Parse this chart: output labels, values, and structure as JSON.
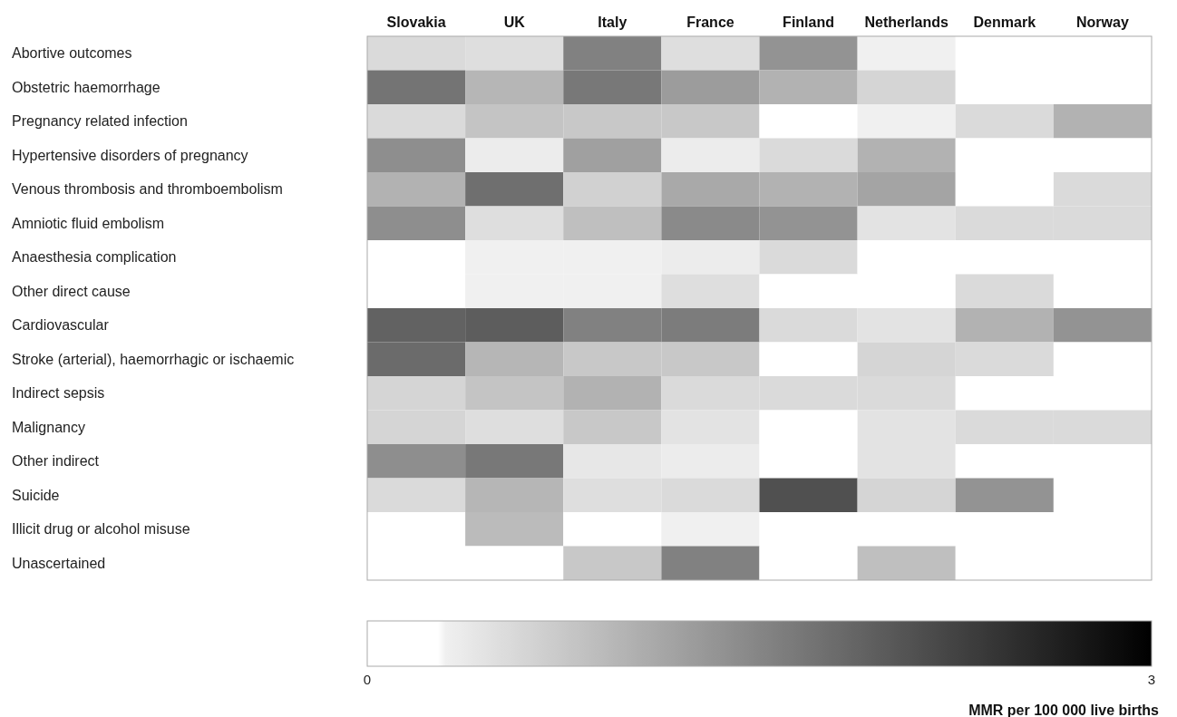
{
  "chart_data": {
    "type": "heatmap",
    "clabel": "MMR per 100 000 live births",
    "categories": [
      "Slovakia",
      "UK",
      "Italy",
      "France",
      "Finland",
      "Netherlands",
      "Denmark",
      "Norway"
    ],
    "y_categories": [
      "Abortive outcomes",
      "Obstetric haemorrhage",
      "Pregnancy related infection",
      "Hypertensive disorders of pregnancy",
      "Venous thrombosis and thromboembolism",
      "Amniotic fluid embolism",
      "Anaesthesia complication",
      "Other direct cause",
      "Cardiovascular",
      "Stroke (arterial), haemorrhagic or ischaemic",
      "Indirect sepsis",
      "Malignancy",
      "Other indirect",
      "Suicide",
      "Illicit drug or alcohol misuse",
      "Unascertained"
    ],
    "cells": [
      [
        0.55,
        0.5,
        1.55,
        0.5,
        1.35,
        0.3,
        0,
        0
      ],
      [
        1.7,
        0.95,
        1.65,
        1.25,
        1.0,
        0.6,
        0,
        0
      ],
      [
        0.55,
        0.8,
        0.75,
        0.75,
        0,
        0.3,
        0.55,
        1.0
      ],
      [
        1.4,
        0.35,
        1.2,
        0.35,
        0.55,
        1.0,
        0,
        0
      ],
      [
        1.0,
        1.75,
        0.65,
        1.1,
        1.0,
        1.15,
        0,
        0.55
      ],
      [
        1.4,
        0.5,
        0.85,
        1.45,
        1.35,
        0.45,
        0.55,
        0.55
      ],
      [
        0,
        0.3,
        0.3,
        0.35,
        0.55,
        0,
        0,
        0
      ],
      [
        0,
        0.3,
        0.3,
        0.5,
        0,
        0,
        0.55,
        0
      ],
      [
        1.9,
        1.95,
        1.55,
        1.6,
        0.55,
        0.45,
        1.0,
        1.35
      ],
      [
        1.8,
        0.95,
        0.75,
        0.75,
        0,
        0.6,
        0.55,
        0
      ],
      [
        0.6,
        0.8,
        1.0,
        0.55,
        0.55,
        0.55,
        0,
        0
      ],
      [
        0.6,
        0.5,
        0.75,
        0.45,
        0,
        0.45,
        0.55,
        0.55
      ],
      [
        1.4,
        1.65,
        0.4,
        0.35,
        0,
        0.45,
        0,
        0
      ],
      [
        0.55,
        0.95,
        0.5,
        0.55,
        2.1,
        0.6,
        1.35,
        0
      ],
      [
        0,
        0.9,
        0,
        0.3,
        0,
        0,
        0,
        0
      ],
      [
        0,
        0,
        0.75,
        1.55,
        0,
        0.85,
        0,
        0
      ]
    ],
    "clim": [
      0,
      3
    ],
    "cticks": [
      0,
      3
    ]
  }
}
